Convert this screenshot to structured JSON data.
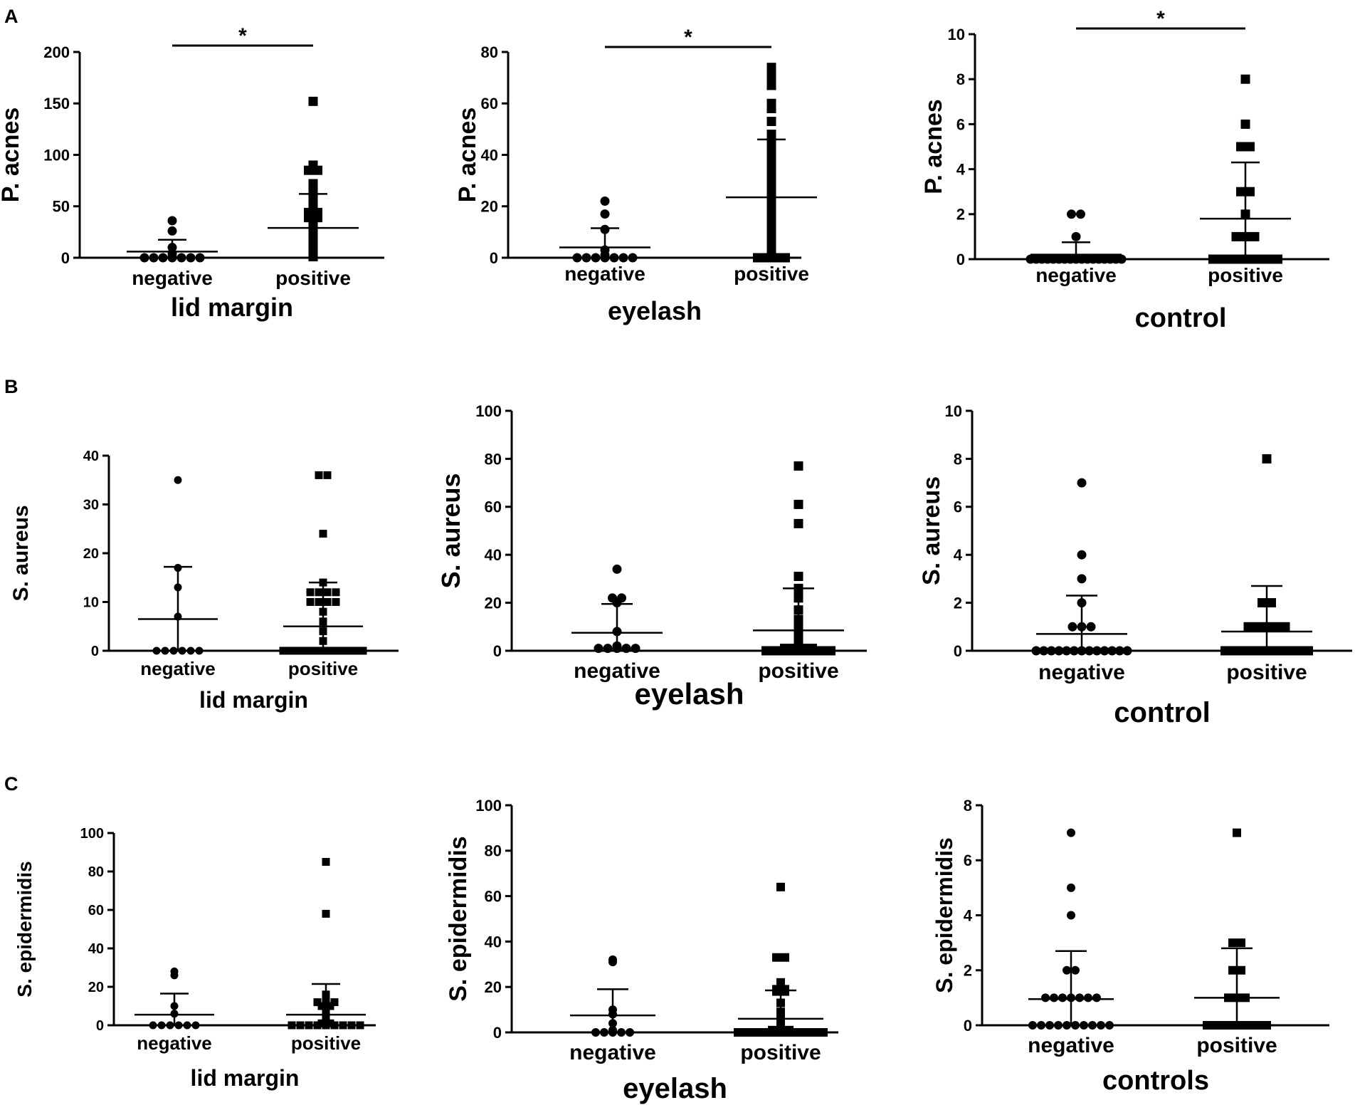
{
  "figure": {
    "panel_labels": [
      "A",
      "B",
      "C"
    ]
  },
  "chart_data": [
    {
      "id": "A1",
      "panel": "A",
      "type": "scatter",
      "ylabel": "P. acnes",
      "xlabel": "lid margin",
      "categories": [
        "negative",
        "positive"
      ],
      "ylim": [
        0,
        200
      ],
      "yticks": [
        0,
        50,
        100,
        150,
        200
      ],
      "significance": "*",
      "series": [
        {
          "name": "negative",
          "marker": "circle",
          "values": [
            36,
            26,
            10,
            4,
            1,
            0,
            0,
            0,
            0,
            0,
            0,
            0
          ],
          "mean": 6,
          "sd_upper": 17.5
        },
        {
          "name": "positive",
          "marker": "square",
          "values": [
            152,
            90,
            86,
            85,
            85,
            72,
            65,
            61,
            58,
            52,
            48,
            44,
            44,
            42,
            40,
            40,
            39,
            39,
            38,
            37,
            36,
            35,
            33,
            30,
            25,
            22,
            20,
            18,
            15,
            12,
            10,
            8,
            6,
            5,
            4,
            3,
            2,
            1
          ],
          "mean": 29,
          "sd_upper": 62
        }
      ]
    },
    {
      "id": "A2",
      "panel": "A",
      "type": "scatter",
      "ylabel": "P. acnes",
      "xlabel": "eyelash",
      "categories": [
        "negative",
        "positive"
      ],
      "ylim": [
        0,
        80
      ],
      "yticks": [
        0,
        20,
        40,
        60,
        80
      ],
      "significance": "*",
      "series": [
        {
          "name": "negative",
          "marker": "circle",
          "values": [
            22,
            17,
            11,
            3,
            1,
            0,
            0,
            0,
            0,
            0,
            0,
            0
          ],
          "mean": 4,
          "sd_upper": 11.5
        },
        {
          "name": "positive",
          "marker": "square",
          "values": [
            74,
            71,
            68,
            67,
            60,
            58,
            53,
            48,
            45,
            42,
            39,
            37,
            34,
            32,
            30,
            29,
            27,
            26,
            25,
            23,
            22,
            20,
            18,
            16,
            15,
            14,
            13,
            12,
            10,
            8,
            7,
            5,
            3,
            2,
            1,
            0,
            0,
            0,
            0
          ],
          "mean": 23.5,
          "sd_upper": 46
        }
      ]
    },
    {
      "id": "A3",
      "panel": "A",
      "type": "scatter",
      "ylabel": "P. acnes",
      "xlabel": "control",
      "categories": [
        "negative",
        "positive"
      ],
      "ylim": [
        0,
        10
      ],
      "yticks": [
        0,
        2,
        4,
        6,
        8,
        10
      ],
      "significance": "*",
      "series": [
        {
          "name": "negative",
          "marker": "circle",
          "values": [
            2,
            2,
            1,
            0,
            0,
            0,
            0,
            0,
            0,
            0,
            0,
            0,
            0,
            0,
            0,
            0,
            0,
            0,
            0,
            0
          ],
          "mean": 0.2,
          "sd_upper": 0.75
        },
        {
          "name": "positive",
          "marker": "square",
          "values": [
            8,
            6,
            5,
            5,
            3,
            3,
            2,
            1,
            1,
            1,
            0,
            0,
            0,
            0,
            0,
            0,
            0,
            0
          ],
          "mean": 1.8,
          "sd_upper": 4.3
        }
      ]
    },
    {
      "id": "B1",
      "panel": "B",
      "type": "scatter",
      "ylabel": "S. aureus",
      "xlabel": "lid margin",
      "categories": [
        "negative",
        "positive"
      ],
      "ylim": [
        0,
        40
      ],
      "yticks": [
        0,
        10,
        20,
        30,
        40
      ],
      "significance": "",
      "series": [
        {
          "name": "negative",
          "marker": "circle",
          "values": [
            35,
            17,
            13,
            7,
            0,
            0,
            0,
            0,
            0,
            0
          ],
          "mean": 6.5,
          "sd_upper": 17.2
        },
        {
          "name": "positive",
          "marker": "square",
          "values": [
            36,
            36,
            24,
            14,
            12,
            12,
            12,
            12,
            10,
            10,
            10,
            10,
            8,
            6,
            4,
            2,
            0,
            0,
            0,
            0,
            0,
            0,
            0,
            0,
            0,
            0,
            0,
            0,
            0,
            0
          ],
          "mean": 5,
          "sd_upper": 14
        }
      ]
    },
    {
      "id": "B2",
      "panel": "B",
      "type": "scatter",
      "ylabel": "S. aureus",
      "xlabel": "eyelash",
      "categories": [
        "negative",
        "positive"
      ],
      "ylim": [
        0,
        100
      ],
      "yticks": [
        0,
        20,
        40,
        60,
        80,
        100
      ],
      "significance": "",
      "series": [
        {
          "name": "negative",
          "marker": "circle",
          "values": [
            34,
            22,
            22,
            20,
            8,
            2,
            1,
            1,
            1,
            1,
            1
          ],
          "mean": 7.5,
          "sd_upper": 19.5
        },
        {
          "name": "positive",
          "marker": "square",
          "values": [
            77,
            61,
            53,
            31,
            26,
            25,
            22,
            17,
            13,
            12,
            11,
            9,
            8,
            7,
            5,
            4,
            3,
            2,
            1,
            1,
            1,
            1,
            0,
            0,
            0,
            0,
            0,
            0,
            0,
            0
          ],
          "mean": 8.5,
          "sd_upper": 26
        }
      ]
    },
    {
      "id": "B3",
      "panel": "B",
      "type": "scatter",
      "ylabel": "S. aureus",
      "xlabel": "control",
      "categories": [
        "negative",
        "positive"
      ],
      "ylim": [
        0,
        10
      ],
      "yticks": [
        0,
        2,
        4,
        6,
        8,
        10
      ],
      "significance": "",
      "series": [
        {
          "name": "negative",
          "marker": "circle",
          "values": [
            7,
            4,
            3,
            2,
            1,
            1,
            1,
            0,
            0,
            0,
            0,
            0,
            0,
            0,
            0,
            0,
            0,
            0,
            0,
            0
          ],
          "mean": 0.7,
          "sd_upper": 2.3
        },
        {
          "name": "positive",
          "marker": "square",
          "values": [
            8,
            2,
            2,
            1,
            1,
            1,
            1,
            1,
            0,
            0,
            0,
            0,
            0,
            0,
            0,
            0,
            0,
            0
          ],
          "mean": 0.8,
          "sd_upper": 2.7
        }
      ]
    },
    {
      "id": "C1",
      "panel": "C",
      "type": "scatter",
      "ylabel": "S. epidermidis",
      "xlabel": "lid margin",
      "categories": [
        "negative",
        "positive"
      ],
      "ylim": [
        0,
        100
      ],
      "yticks": [
        0,
        20,
        40,
        60,
        80,
        100
      ],
      "significance": "",
      "series": [
        {
          "name": "negative",
          "marker": "circle",
          "values": [
            28,
            26,
            10,
            6,
            0,
            0,
            0,
            0,
            0,
            0
          ],
          "mean": 5.5,
          "sd_upper": 16.5
        },
        {
          "name": "positive",
          "marker": "square",
          "values": [
            85,
            58,
            16,
            14,
            12,
            12,
            12,
            10,
            10,
            8,
            6,
            4,
            3,
            2,
            1,
            1,
            0,
            0,
            0,
            0,
            0,
            0,
            0,
            0,
            0
          ],
          "mean": 5.5,
          "sd_upper": 21.5
        }
      ]
    },
    {
      "id": "C2",
      "panel": "C",
      "type": "scatter",
      "ylabel": "S. epidermidis",
      "xlabel": "eyelash",
      "categories": [
        "negative",
        "positive"
      ],
      "ylim": [
        0,
        100
      ],
      "yticks": [
        0,
        20,
        40,
        60,
        80,
        100
      ],
      "significance": "",
      "series": [
        {
          "name": "negative",
          "marker": "circle",
          "values": [
            32,
            31,
            10,
            8,
            4,
            1,
            0,
            0,
            0,
            0,
            0
          ],
          "mean": 7.5,
          "sd_upper": 19
        },
        {
          "name": "positive",
          "marker": "square",
          "values": [
            64,
            33,
            33,
            22,
            19,
            19,
            18,
            18,
            13,
            9,
            7,
            5,
            3,
            2,
            1,
            1,
            1,
            0,
            0,
            0,
            0,
            0,
            0,
            0,
            0,
            0,
            0,
            0,
            0,
            0
          ],
          "mean": 6,
          "sd_upper": 18.5
        }
      ]
    },
    {
      "id": "C3",
      "panel": "C",
      "type": "scatter",
      "ylabel": "S. epidermidis",
      "xlabel": "controls",
      "categories": [
        "negative",
        "positive"
      ],
      "ylim": [
        0,
        8
      ],
      "yticks": [
        0,
        2,
        4,
        6,
        8
      ],
      "significance": "",
      "series": [
        {
          "name": "negative",
          "marker": "circle",
          "values": [
            7,
            5,
            4,
            2,
            2,
            1,
            1,
            1,
            1,
            1,
            1,
            1,
            0,
            0,
            0,
            0,
            0,
            0,
            0,
            0,
            0,
            0
          ],
          "mean": 0.95,
          "sd_upper": 2.7
        },
        {
          "name": "positive",
          "marker": "square",
          "values": [
            7,
            3,
            3,
            2,
            2,
            1,
            1,
            1,
            0,
            0,
            0,
            0,
            0,
            0,
            0,
            0
          ],
          "mean": 1,
          "sd_upper": 2.8
        }
      ]
    }
  ]
}
